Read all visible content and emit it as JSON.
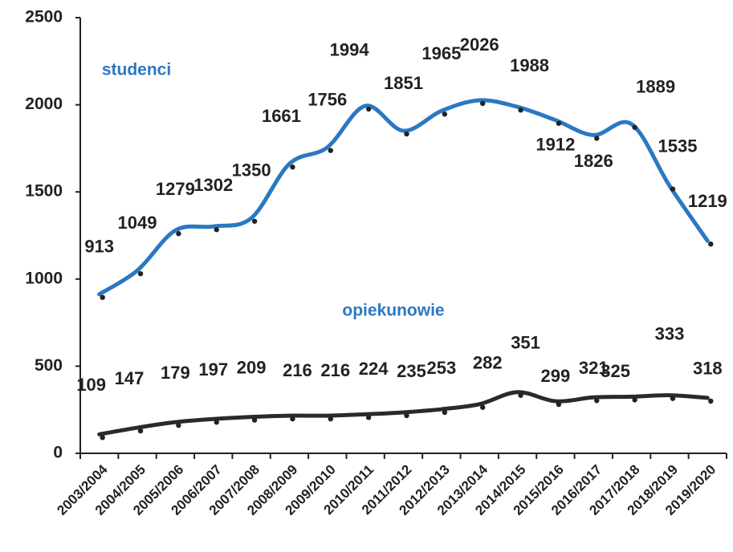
{
  "chart_data": {
    "type": "line",
    "categories": [
      "2003/2004",
      "2004/2005",
      "2005/2006",
      "2006/2007",
      "2007/2008",
      "2008/2009",
      "2009/2010",
      "2010/2011",
      "2011/2012",
      "2012/2013",
      "2013/2014",
      "2014/2015",
      "2015/2016",
      "2016/2017",
      "2017/2018",
      "2018/2019",
      "2019/2020"
    ],
    "series": [
      {
        "name": "studenci",
        "color": "#2b78c2",
        "values": [
          913,
          1049,
          1279,
          1302,
          1350,
          1661,
          1756,
          1994,
          1851,
          1965,
          2026,
          1988,
          1912,
          1826,
          1889,
          1535,
          1219
        ]
      },
      {
        "name": "opiekunowie",
        "color": "#2a2a2a",
        "values": [
          109,
          147,
          179,
          197,
          209,
          216,
          216,
          224,
          235,
          253,
          282,
          351,
          299,
          321,
          325,
          333,
          318
        ]
      }
    ],
    "ylim": [
      0,
      2500
    ],
    "yticks": [
      0,
      500,
      1000,
      1500,
      2000,
      2500
    ],
    "grid": false
  }
}
